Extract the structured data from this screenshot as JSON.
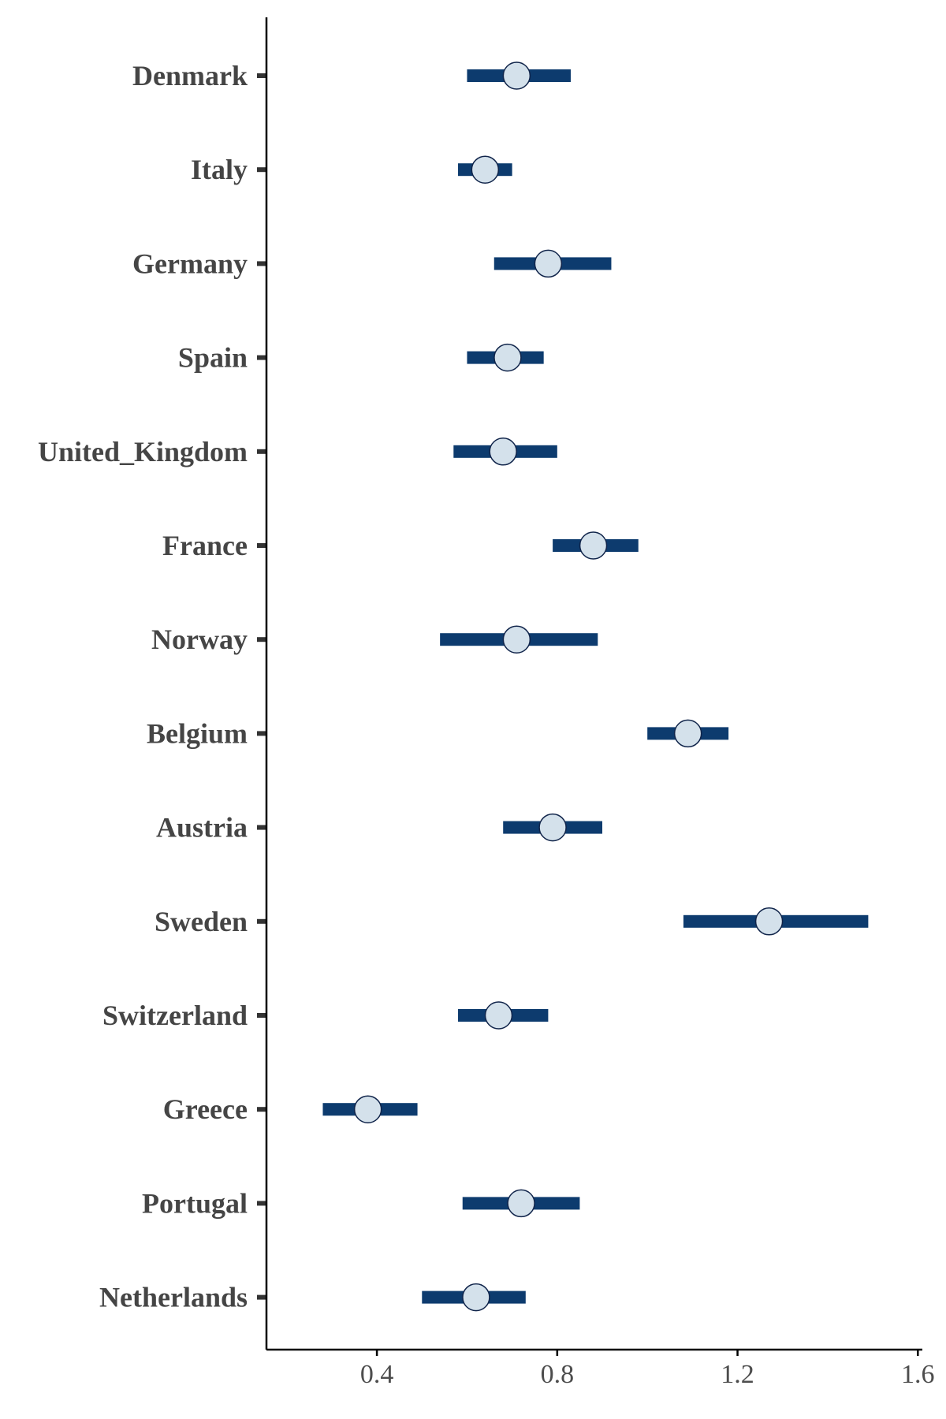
{
  "chart_data": {
    "type": "forest",
    "title": "",
    "xlabel": "",
    "ylabel": "",
    "xlim": [
      0.155,
      1.61
    ],
    "xticks": [
      0.4,
      0.8,
      1.2,
      1.6
    ],
    "xtick_labels": [
      "0.4",
      "0.8",
      "1.2",
      "1.6"
    ],
    "grid": false,
    "categories": [
      "Denmark",
      "Italy",
      "Germany",
      "Spain",
      "United_Kingdom",
      "France",
      "Norway",
      "Belgium",
      "Austria",
      "Sweden",
      "Switzerland",
      "Greece",
      "Portugal",
      "Netherlands"
    ],
    "estimates": [
      0.71,
      0.64,
      0.78,
      0.69,
      0.68,
      0.88,
      0.71,
      1.09,
      0.79,
      1.27,
      0.67,
      0.38,
      0.72,
      0.62
    ],
    "lower": [
      0.6,
      0.58,
      0.66,
      0.6,
      0.57,
      0.79,
      0.54,
      1.0,
      0.68,
      1.08,
      0.58,
      0.28,
      0.59,
      0.5
    ],
    "upper": [
      0.83,
      0.7,
      0.92,
      0.77,
      0.8,
      0.98,
      0.89,
      1.18,
      0.9,
      1.49,
      0.78,
      0.49,
      0.85,
      0.73
    ],
    "colors": {
      "interval": "#0d3b6e",
      "point_fill": "#d4e1eb",
      "point_stroke": "#10244a",
      "axis": "#000000",
      "label": "#454545"
    }
  }
}
